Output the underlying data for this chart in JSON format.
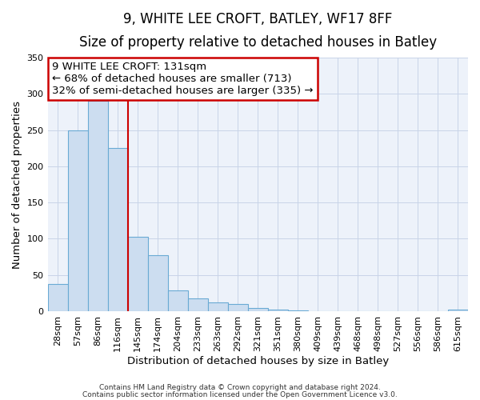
{
  "title": "9, WHITE LEE CROFT, BATLEY, WF17 8FF",
  "subtitle": "Size of property relative to detached houses in Batley",
  "xlabel": "Distribution of detached houses by size in Batley",
  "ylabel": "Number of detached properties",
  "bar_labels": [
    "28sqm",
    "57sqm",
    "86sqm",
    "116sqm",
    "145sqm",
    "174sqm",
    "204sqm",
    "233sqm",
    "263sqm",
    "292sqm",
    "321sqm",
    "351sqm",
    "380sqm",
    "409sqm",
    "439sqm",
    "468sqm",
    "498sqm",
    "527sqm",
    "556sqm",
    "586sqm",
    "615sqm"
  ],
  "bar_values": [
    38,
    250,
    290,
    225,
    103,
    77,
    29,
    18,
    12,
    10,
    4,
    2,
    1,
    0,
    0,
    0,
    0,
    0,
    0,
    0,
    2
  ],
  "bar_color": "#ccddf0",
  "bar_edge_color": "#6aaad4",
  "vline_color": "#cc0000",
  "vline_x": 3.5,
  "annotation_line1": "9 WHITE LEE CROFT: 131sqm",
  "annotation_line2": "← 68% of detached houses are smaller (713)",
  "annotation_line3": "32% of semi-detached houses are larger (335) →",
  "annotation_box_color": "#cc0000",
  "ylim": [
    0,
    350
  ],
  "yticks": [
    0,
    50,
    100,
    150,
    200,
    250,
    300,
    350
  ],
  "grid_color": "#c8d4e8",
  "bg_color": "#edf2fa",
  "footer1": "Contains HM Land Registry data © Crown copyright and database right 2024.",
  "footer2": "Contains public sector information licensed under the Open Government Licence v3.0.",
  "title_fontsize": 12,
  "subtitle_fontsize": 10,
  "axis_label_fontsize": 9.5,
  "tick_fontsize": 8,
  "annotation_fontsize": 9.5
}
